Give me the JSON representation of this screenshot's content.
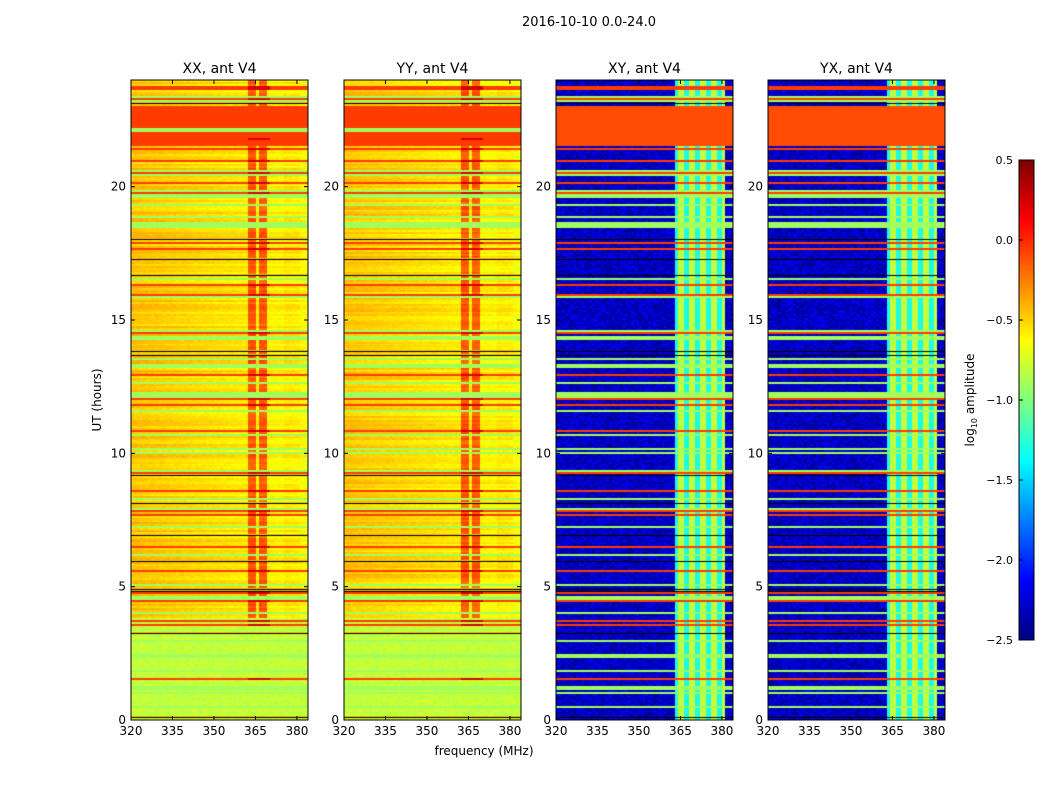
{
  "chart_data": {
    "type": "heatmap",
    "title": "2016-10-10 0.0-24.0",
    "xlabel": "frequency (MHz)",
    "ylabel": "UT (hours)",
    "xlim": [
      320,
      384
    ],
    "ylim": [
      0,
      24
    ],
    "xticks": [
      "320",
      "335",
      "350",
      "365",
      "380"
    ],
    "yticks": [
      "0",
      "5",
      "10",
      "15",
      "20"
    ],
    "panels": [
      {
        "title": "XX, ant V4",
        "kind": "auto"
      },
      {
        "title": "YY, ant V4",
        "kind": "auto"
      },
      {
        "title": "XY, ant V4",
        "kind": "cross"
      },
      {
        "title": "YX, ant V4",
        "kind": "cross"
      }
    ],
    "colorbar": {
      "label": "log10 amplitude",
      "label_main": "log",
      "label_sub": "10",
      "label_rest": " amplitude",
      "range": [
        -2.5,
        0.5
      ],
      "ticks": [
        "0.5",
        "0.0",
        "−0.5",
        "−1.0",
        "−1.5",
        "−2.0",
        "−2.5"
      ],
      "colormap": "jet"
    }
  }
}
